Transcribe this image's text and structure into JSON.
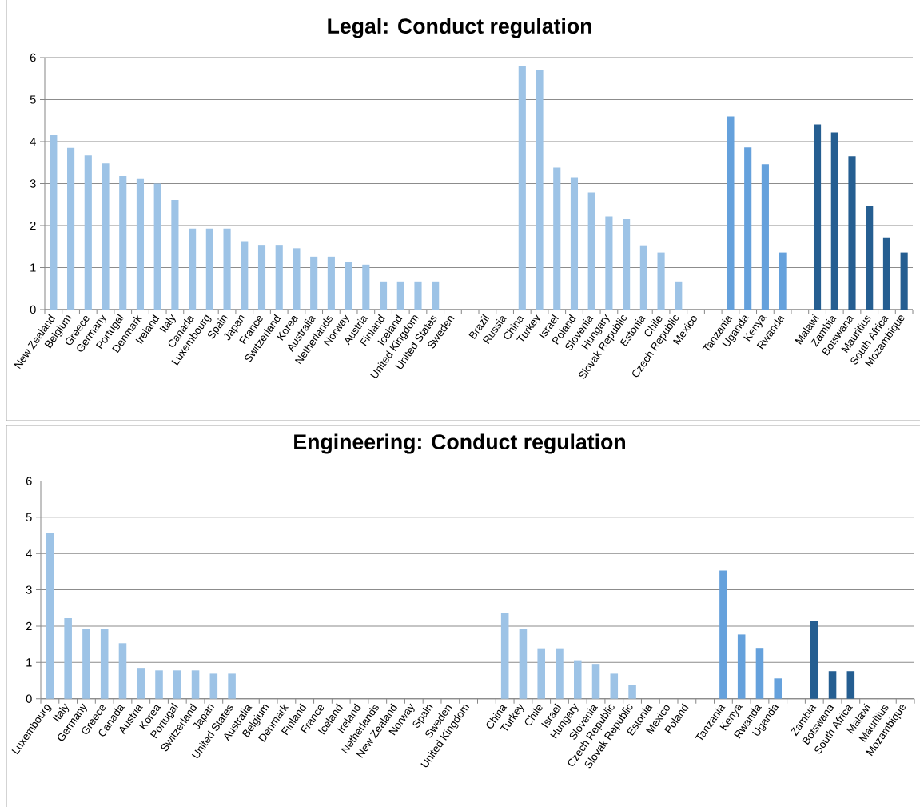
{
  "chart_data": [
    {
      "type": "bar",
      "title": "Legal: Conduct regulation",
      "categories": [
        "New Zealand",
        "Belgium",
        "Greece",
        "Germany",
        "Portugal",
        "Denmark",
        "Ireland",
        "Italy",
        "Canada",
        "Luxembourg",
        "Spain",
        "Japan",
        "France",
        "Switzerland",
        "Korea",
        "Australia",
        "Netherlands",
        "Norway",
        "Austria",
        "Finland",
        "Iceland",
        "United Kingdom",
        "United States",
        "Sweden",
        null,
        "Brazil",
        "Russia",
        "China",
        "Turkey",
        "Israel",
        "Poland",
        "Slovenia",
        "Hungary",
        "Slovak Republic",
        "Estonia",
        "Chile",
        "Czech Republic",
        "Mexico",
        null,
        "Tanzania",
        "Uganda",
        "Kenya",
        "Rwanda",
        null,
        "Malawi",
        "Zambia",
        "Botswana",
        "Mauritius",
        "South Africa",
        "Mozambique"
      ],
      "values": [
        4.15,
        3.85,
        3.67,
        3.48,
        3.18,
        3.11,
        3.0,
        2.61,
        1.93,
        1.93,
        1.93,
        1.63,
        1.54,
        1.54,
        1.46,
        1.26,
        1.26,
        1.14,
        1.07,
        0.67,
        0.67,
        0.67,
        0.67,
        0,
        null,
        0,
        0,
        5.8,
        5.7,
        3.38,
        3.15,
        2.79,
        2.22,
        2.15,
        1.53,
        1.36,
        0.67,
        0,
        null,
        4.6,
        3.86,
        3.46,
        1.36,
        null,
        4.41,
        4.22,
        3.65,
        2.46,
        1.72,
        1.36
      ],
      "colors": [
        "#9dc3e6",
        "#9dc3e6",
        "#9dc3e6",
        "#9dc3e6",
        "#9dc3e6",
        "#9dc3e6",
        "#9dc3e6",
        "#9dc3e6",
        "#9dc3e6",
        "#9dc3e6",
        "#9dc3e6",
        "#9dc3e6",
        "#9dc3e6",
        "#9dc3e6",
        "#9dc3e6",
        "#9dc3e6",
        "#9dc3e6",
        "#9dc3e6",
        "#9dc3e6",
        "#9dc3e6",
        "#9dc3e6",
        "#9dc3e6",
        "#9dc3e6",
        "#9dc3e6",
        null,
        "#9dc3e6",
        "#9dc3e6",
        "#9dc3e6",
        "#9dc3e6",
        "#9dc3e6",
        "#9dc3e6",
        "#9dc3e6",
        "#9dc3e6",
        "#9dc3e6",
        "#9dc3e6",
        "#9dc3e6",
        "#9dc3e6",
        "#9dc3e6",
        null,
        "#65a1dc",
        "#65a1dc",
        "#65a1dc",
        "#65a1dc",
        null,
        "#255e91",
        "#255e91",
        "#255e91",
        "#255e91",
        "#255e91",
        "#255e91"
      ],
      "ylim": [
        0,
        6
      ],
      "yticks": [
        0,
        1,
        2,
        3,
        4,
        5,
        6
      ],
      "grid": "y"
    },
    {
      "type": "bar",
      "title": "Engineering: Conduct regulation",
      "categories": [
        "Luxembourg",
        "Italy",
        "Germany",
        "Greece",
        "Canada",
        "Austria",
        "Korea",
        "Portugal",
        "Switzerland",
        "Japan",
        "United States",
        "Australia",
        "Belgium",
        "Denmark",
        "Finland",
        "France",
        "Iceland",
        "Ireland",
        "Netherlands",
        "New Zealand",
        "Norway",
        "Spain",
        "Sweden",
        "United Kingdom",
        null,
        "China",
        "Turkey",
        "Chile",
        "Israel",
        "Hungary",
        "Slovenia",
        "Czech Republic",
        "Slovak Republic",
        "Estonia",
        "Mexico",
        "Poland",
        null,
        "Tanzania",
        "Kenya",
        "Rwanda",
        "Uganda",
        null,
        "Zambia",
        "Botswana",
        "South Africa",
        "Malawi",
        "Mauritius",
        "Mozambique"
      ],
      "values": [
        4.56,
        2.22,
        1.93,
        1.93,
        1.53,
        0.85,
        0.78,
        0.78,
        0.78,
        0.69,
        0.69,
        0,
        0,
        0,
        0,
        0,
        0,
        0,
        0,
        0,
        0,
        0,
        0,
        0,
        null,
        2.36,
        1.93,
        1.39,
        1.39,
        1.06,
        0.96,
        0.69,
        0.37,
        0,
        0,
        0,
        null,
        3.53,
        1.77,
        1.4,
        0.56,
        null,
        2.15,
        0.76,
        0.76,
        0,
        0,
        0
      ],
      "colors": [
        "#9dc3e6",
        "#9dc3e6",
        "#9dc3e6",
        "#9dc3e6",
        "#9dc3e6",
        "#9dc3e6",
        "#9dc3e6",
        "#9dc3e6",
        "#9dc3e6",
        "#9dc3e6",
        "#9dc3e6",
        "#9dc3e6",
        "#9dc3e6",
        "#9dc3e6",
        "#9dc3e6",
        "#9dc3e6",
        "#9dc3e6",
        "#9dc3e6",
        "#9dc3e6",
        "#9dc3e6",
        "#9dc3e6",
        "#9dc3e6",
        "#9dc3e6",
        "#9dc3e6",
        null,
        "#9dc3e6",
        "#9dc3e6",
        "#9dc3e6",
        "#9dc3e6",
        "#9dc3e6",
        "#9dc3e6",
        "#9dc3e6",
        "#9dc3e6",
        "#9dc3e6",
        "#9dc3e6",
        "#9dc3e6",
        null,
        "#65a1dc",
        "#65a1dc",
        "#65a1dc",
        "#65a1dc",
        null,
        "#255e91",
        "#255e91",
        "#255e91",
        "#255e91",
        "#255e91",
        "#255e91"
      ],
      "ylim": [
        0,
        6
      ],
      "yticks": [
        0,
        1,
        2,
        3,
        4,
        5,
        6
      ],
      "grid": "y"
    }
  ]
}
